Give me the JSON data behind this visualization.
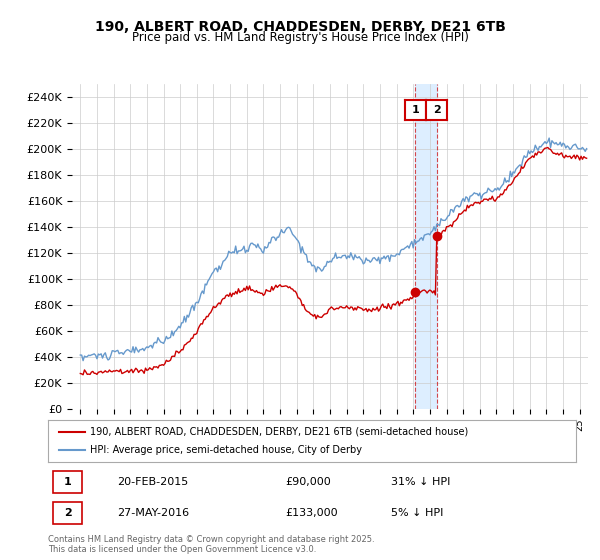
{
  "title1": "190, ALBERT ROAD, CHADDESDEN, DERBY, DE21 6TB",
  "title2": "Price paid vs. HM Land Registry's House Price Index (HPI)",
  "red_label": "190, ALBERT ROAD, CHADDESDEN, DERBY, DE21 6TB (semi-detached house)",
  "blue_label": "HPI: Average price, semi-detached house, City of Derby",
  "transaction1_date": "20-FEB-2015",
  "transaction1_price": "£90,000",
  "transaction1_hpi": "31% ↓ HPI",
  "transaction2_date": "27-MAY-2016",
  "transaction2_price": "£133,000",
  "transaction2_hpi": "5% ↓ HPI",
  "transaction1_x": 2015.13,
  "transaction1_y_red": 90000,
  "transaction1_y_blue": 130000,
  "transaction2_x": 2016.41,
  "transaction2_y_red": 133000,
  "transaction2_y_blue": 140000,
  "ylim": [
    0,
    250000
  ],
  "xlim": [
    1994.5,
    2025.5
  ],
  "red_color": "#cc0000",
  "blue_color": "#6699cc",
  "background_color": "#ffffff",
  "grid_color": "#cccccc",
  "shade_color": "#ddeeff",
  "footer": "Contains HM Land Registry data © Crown copyright and database right 2025.\nThis data is licensed under the Open Government Licence v3.0."
}
